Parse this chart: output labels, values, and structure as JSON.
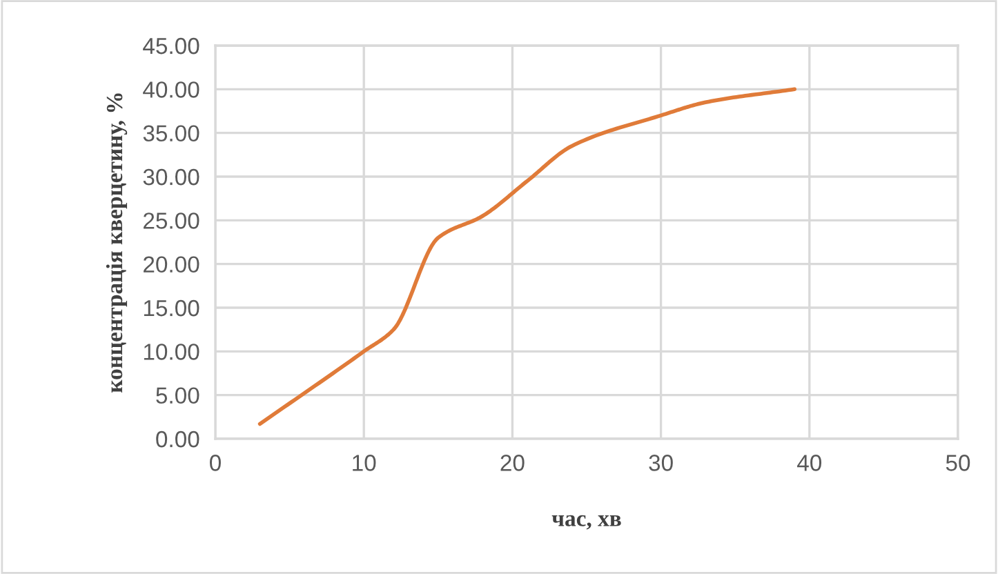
{
  "chart_data": {
    "type": "line",
    "xlabel": "час, хв",
    "ylabel": "концентрація кверцетину, %",
    "x": [
      3,
      10,
      12,
      15,
      18,
      21,
      24,
      30,
      33,
      39
    ],
    "series": [
      {
        "color": "#e07b39",
        "values": [
          1.7,
          10,
          12.5,
          23,
          25.5,
          29.5,
          33.5,
          37,
          38.5,
          40
        ]
      }
    ],
    "xlim": [
      0,
      50
    ],
    "xticks": [
      0,
      10,
      20,
      30,
      40,
      50
    ],
    "ylim": [
      0,
      45
    ],
    "yticks": [
      {
        "value": 0,
        "label": "0.00"
      },
      {
        "value": 5,
        "label": "5.00"
      },
      {
        "value": 10,
        "label": "10.00"
      },
      {
        "value": 15,
        "label": "15.00"
      },
      {
        "value": 20,
        "label": "20.00"
      },
      {
        "value": 25,
        "label": "25.00"
      },
      {
        "value": 30,
        "label": "30.00"
      },
      {
        "value": 35,
        "label": "35.00"
      },
      {
        "value": 40,
        "label": "40.00"
      },
      {
        "value": 45,
        "label": "45.00"
      }
    ],
    "grid": true,
    "marker": "none",
    "line_style": "solid"
  }
}
